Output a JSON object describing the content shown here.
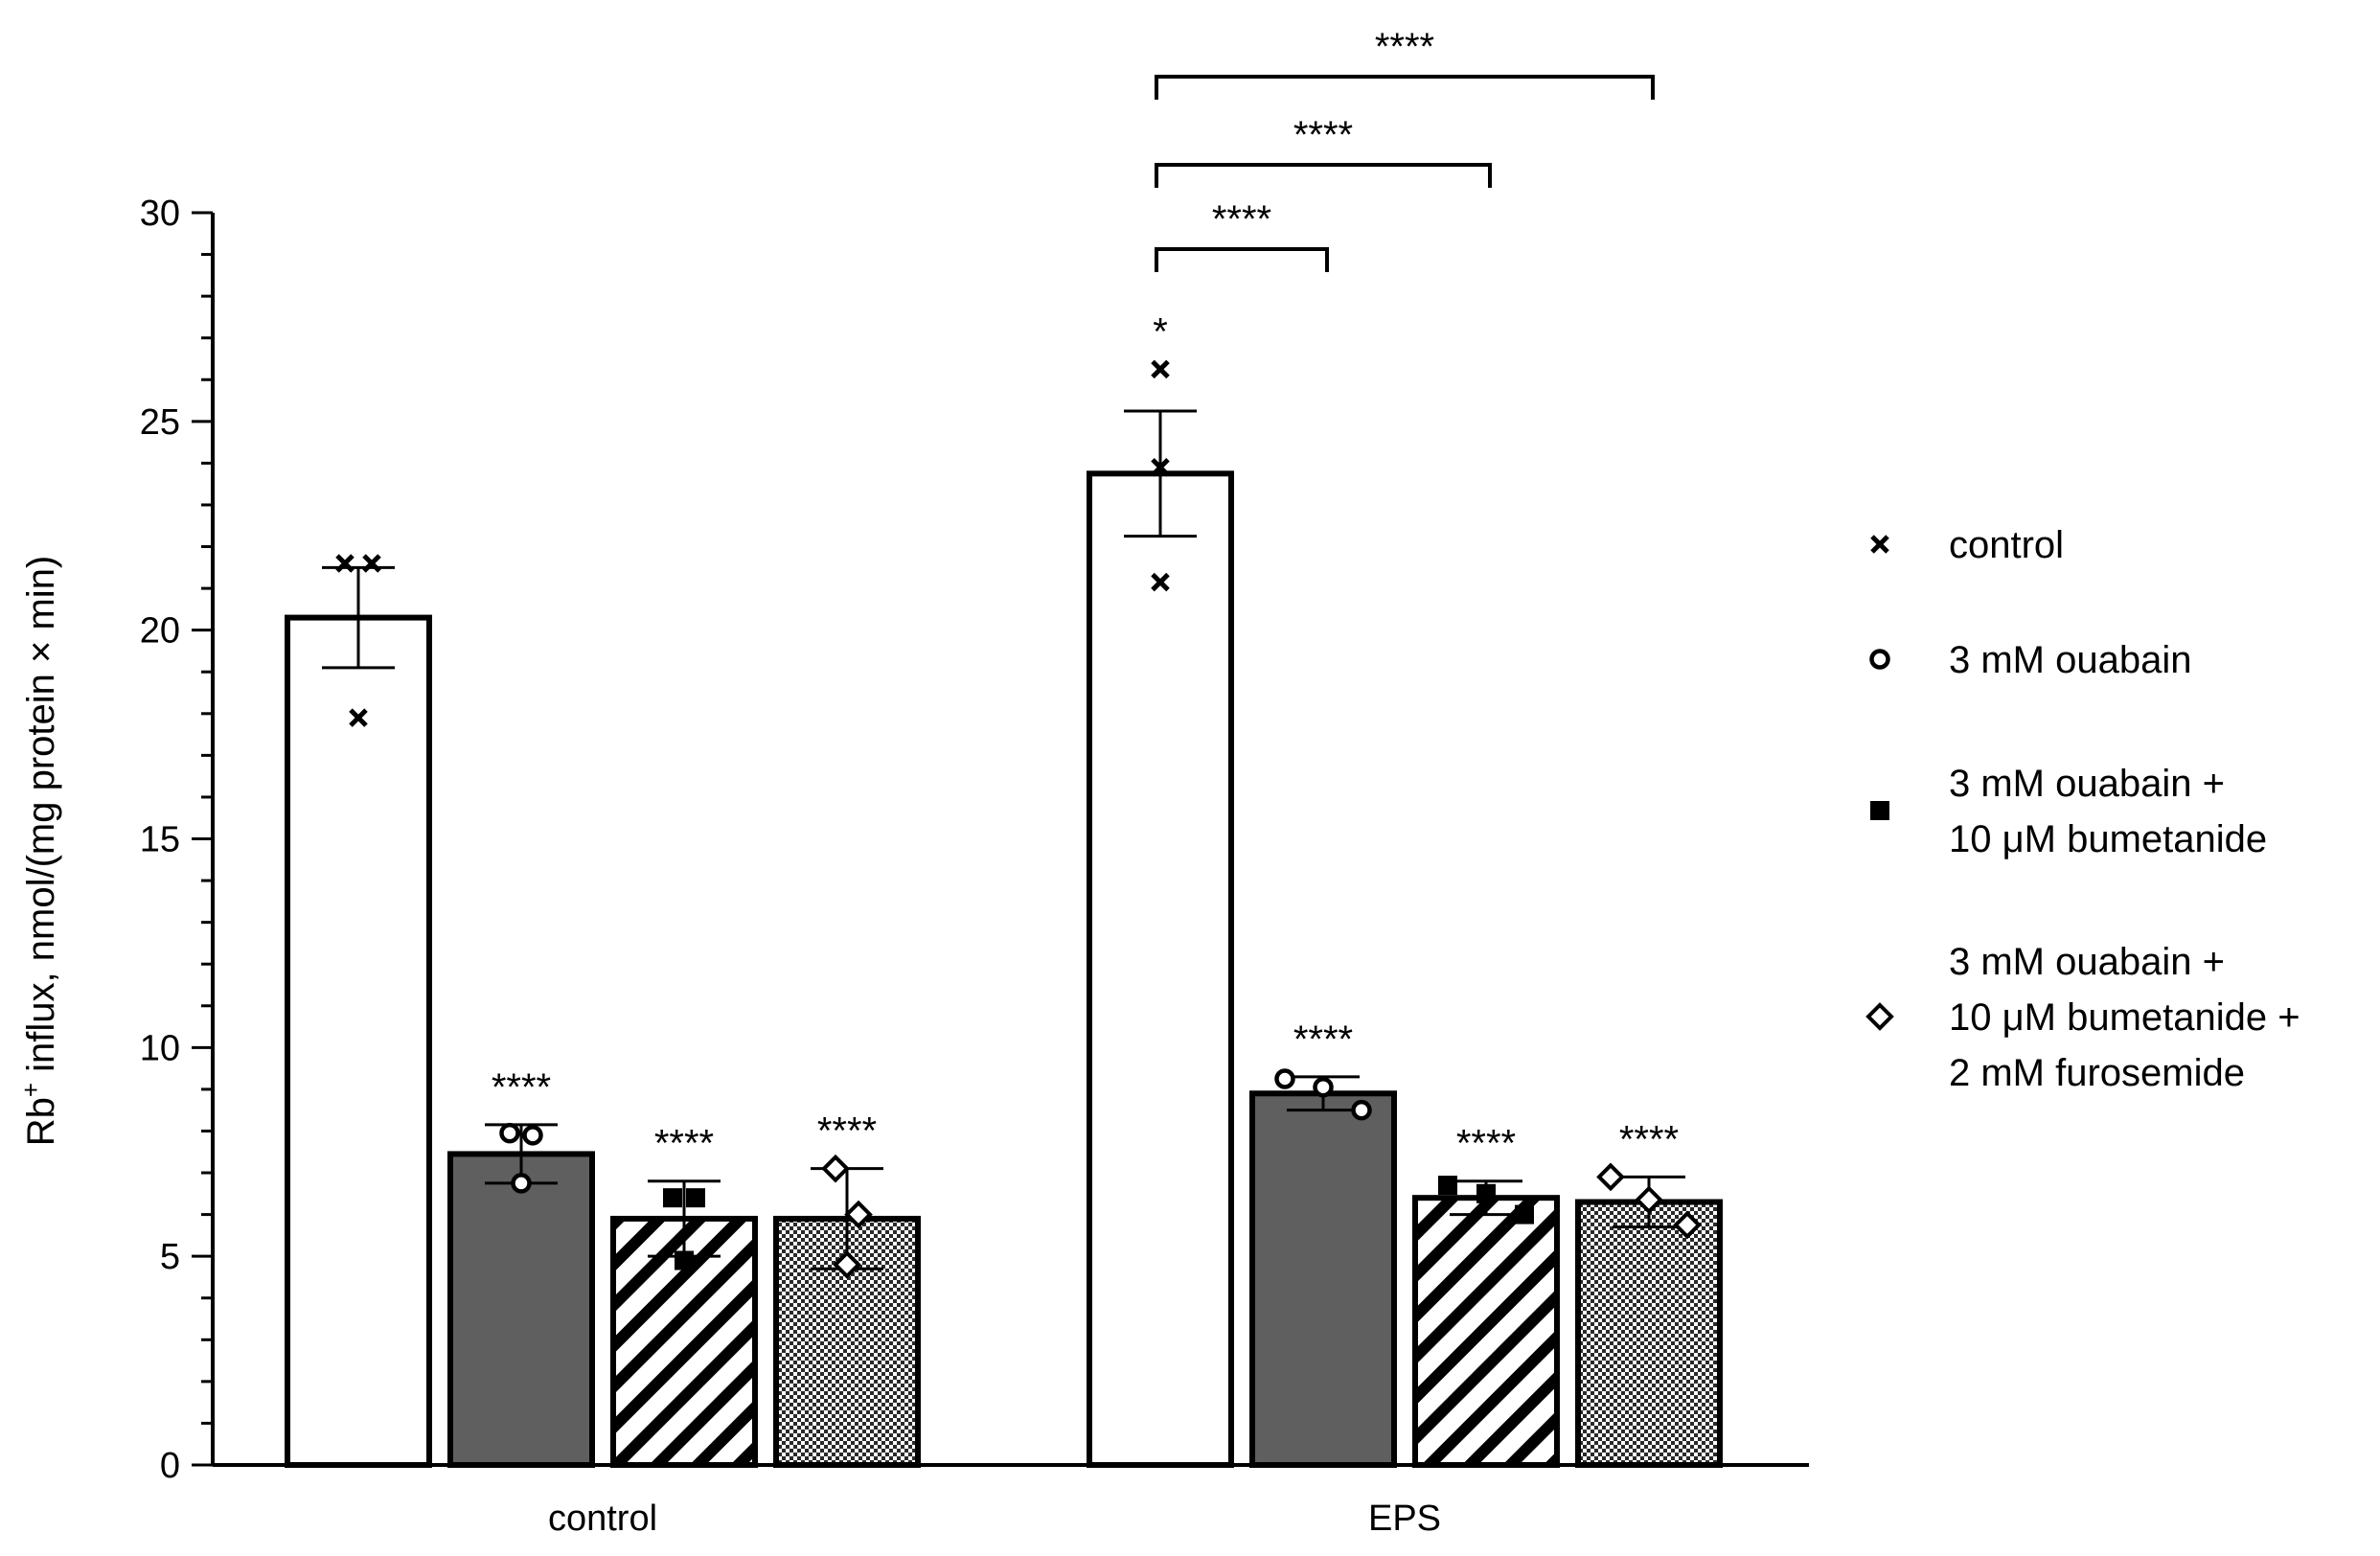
{
  "chart_data": {
    "type": "bar",
    "ylabel_main": "Rb",
    "ylabel_sup": "+",
    "ylabel_rest": " influx, nmol/(mg protein × min)",
    "ylim": [
      0,
      30
    ],
    "yticks": [
      0,
      5,
      10,
      15,
      20,
      25,
      30
    ],
    "yticks_text": [
      "0",
      "5",
      "10",
      "15",
      "20",
      "25",
      "30"
    ],
    "minor_tick_step": 1,
    "categories": [
      "control",
      "EPS"
    ],
    "series": [
      {
        "name": "control",
        "marker": "cross",
        "fill": "white",
        "values": [
          20.3,
          23.75
        ],
        "errors": [
          1.2,
          1.5
        ],
        "points": [
          [
            21.6,
            21.6,
            17.9
          ],
          [
            26.25,
            23.9,
            21.15
          ]
        ],
        "annotations": [
          "",
          "*"
        ]
      },
      {
        "name": "3 mM ouabain",
        "marker": "circle",
        "fill": "gray",
        "values": [
          7.45,
          8.9
        ],
        "errors": [
          0.7,
          0.4
        ],
        "points": [
          [
            7.95,
            7.9,
            6.75
          ],
          [
            9.25,
            9.05,
            8.5
          ]
        ],
        "annotations": [
          "****",
          "****"
        ]
      },
      {
        "name": "3 mM ouabain + 10 μM bumetanide",
        "marker": "square",
        "fill": "hatch",
        "values": [
          5.9,
          6.4
        ],
        "errors": [
          0.9,
          0.4
        ],
        "points": [
          [
            6.4,
            6.4,
            4.9
          ],
          [
            6.7,
            6.5,
            6.0
          ]
        ],
        "annotations": [
          "****",
          "****"
        ]
      },
      {
        "name": "3 mM ouabain + 10 μM bumetanide + 2 mM furosemide",
        "marker": "diamond",
        "fill": "checker",
        "values": [
          5.9,
          6.3
        ],
        "errors": [
          1.2,
          0.6
        ],
        "points": [
          [
            7.1,
            6.0,
            4.8
          ],
          [
            6.9,
            6.35,
            5.75
          ]
        ],
        "annotations": [
          "****",
          "****"
        ]
      }
    ],
    "brackets": [
      {
        "group": 1,
        "from": 0,
        "to": 1,
        "label": "****"
      },
      {
        "group": 1,
        "from": 0,
        "to": 2,
        "label": "****"
      },
      {
        "group": 1,
        "from": 0,
        "to": 3,
        "label": "****"
      }
    ],
    "legend": {
      "position": "right",
      "entries": [
        {
          "marker": "cross",
          "lines": [
            "control"
          ]
        },
        {
          "marker": "circle",
          "lines": [
            "3 mM ouabain"
          ]
        },
        {
          "marker": "square",
          "lines": [
            "3 mM ouabain +",
            "10 μM bumetanide"
          ]
        },
        {
          "marker": "diamond",
          "lines": [
            "3 mM ouabain +",
            "10 μM bumetanide +",
            " 2 mM furosemide"
          ]
        }
      ]
    },
    "colors": {
      "gray_bar": "#5f5f5f",
      "ink": "#000000",
      "background": "#ffffff"
    }
  }
}
